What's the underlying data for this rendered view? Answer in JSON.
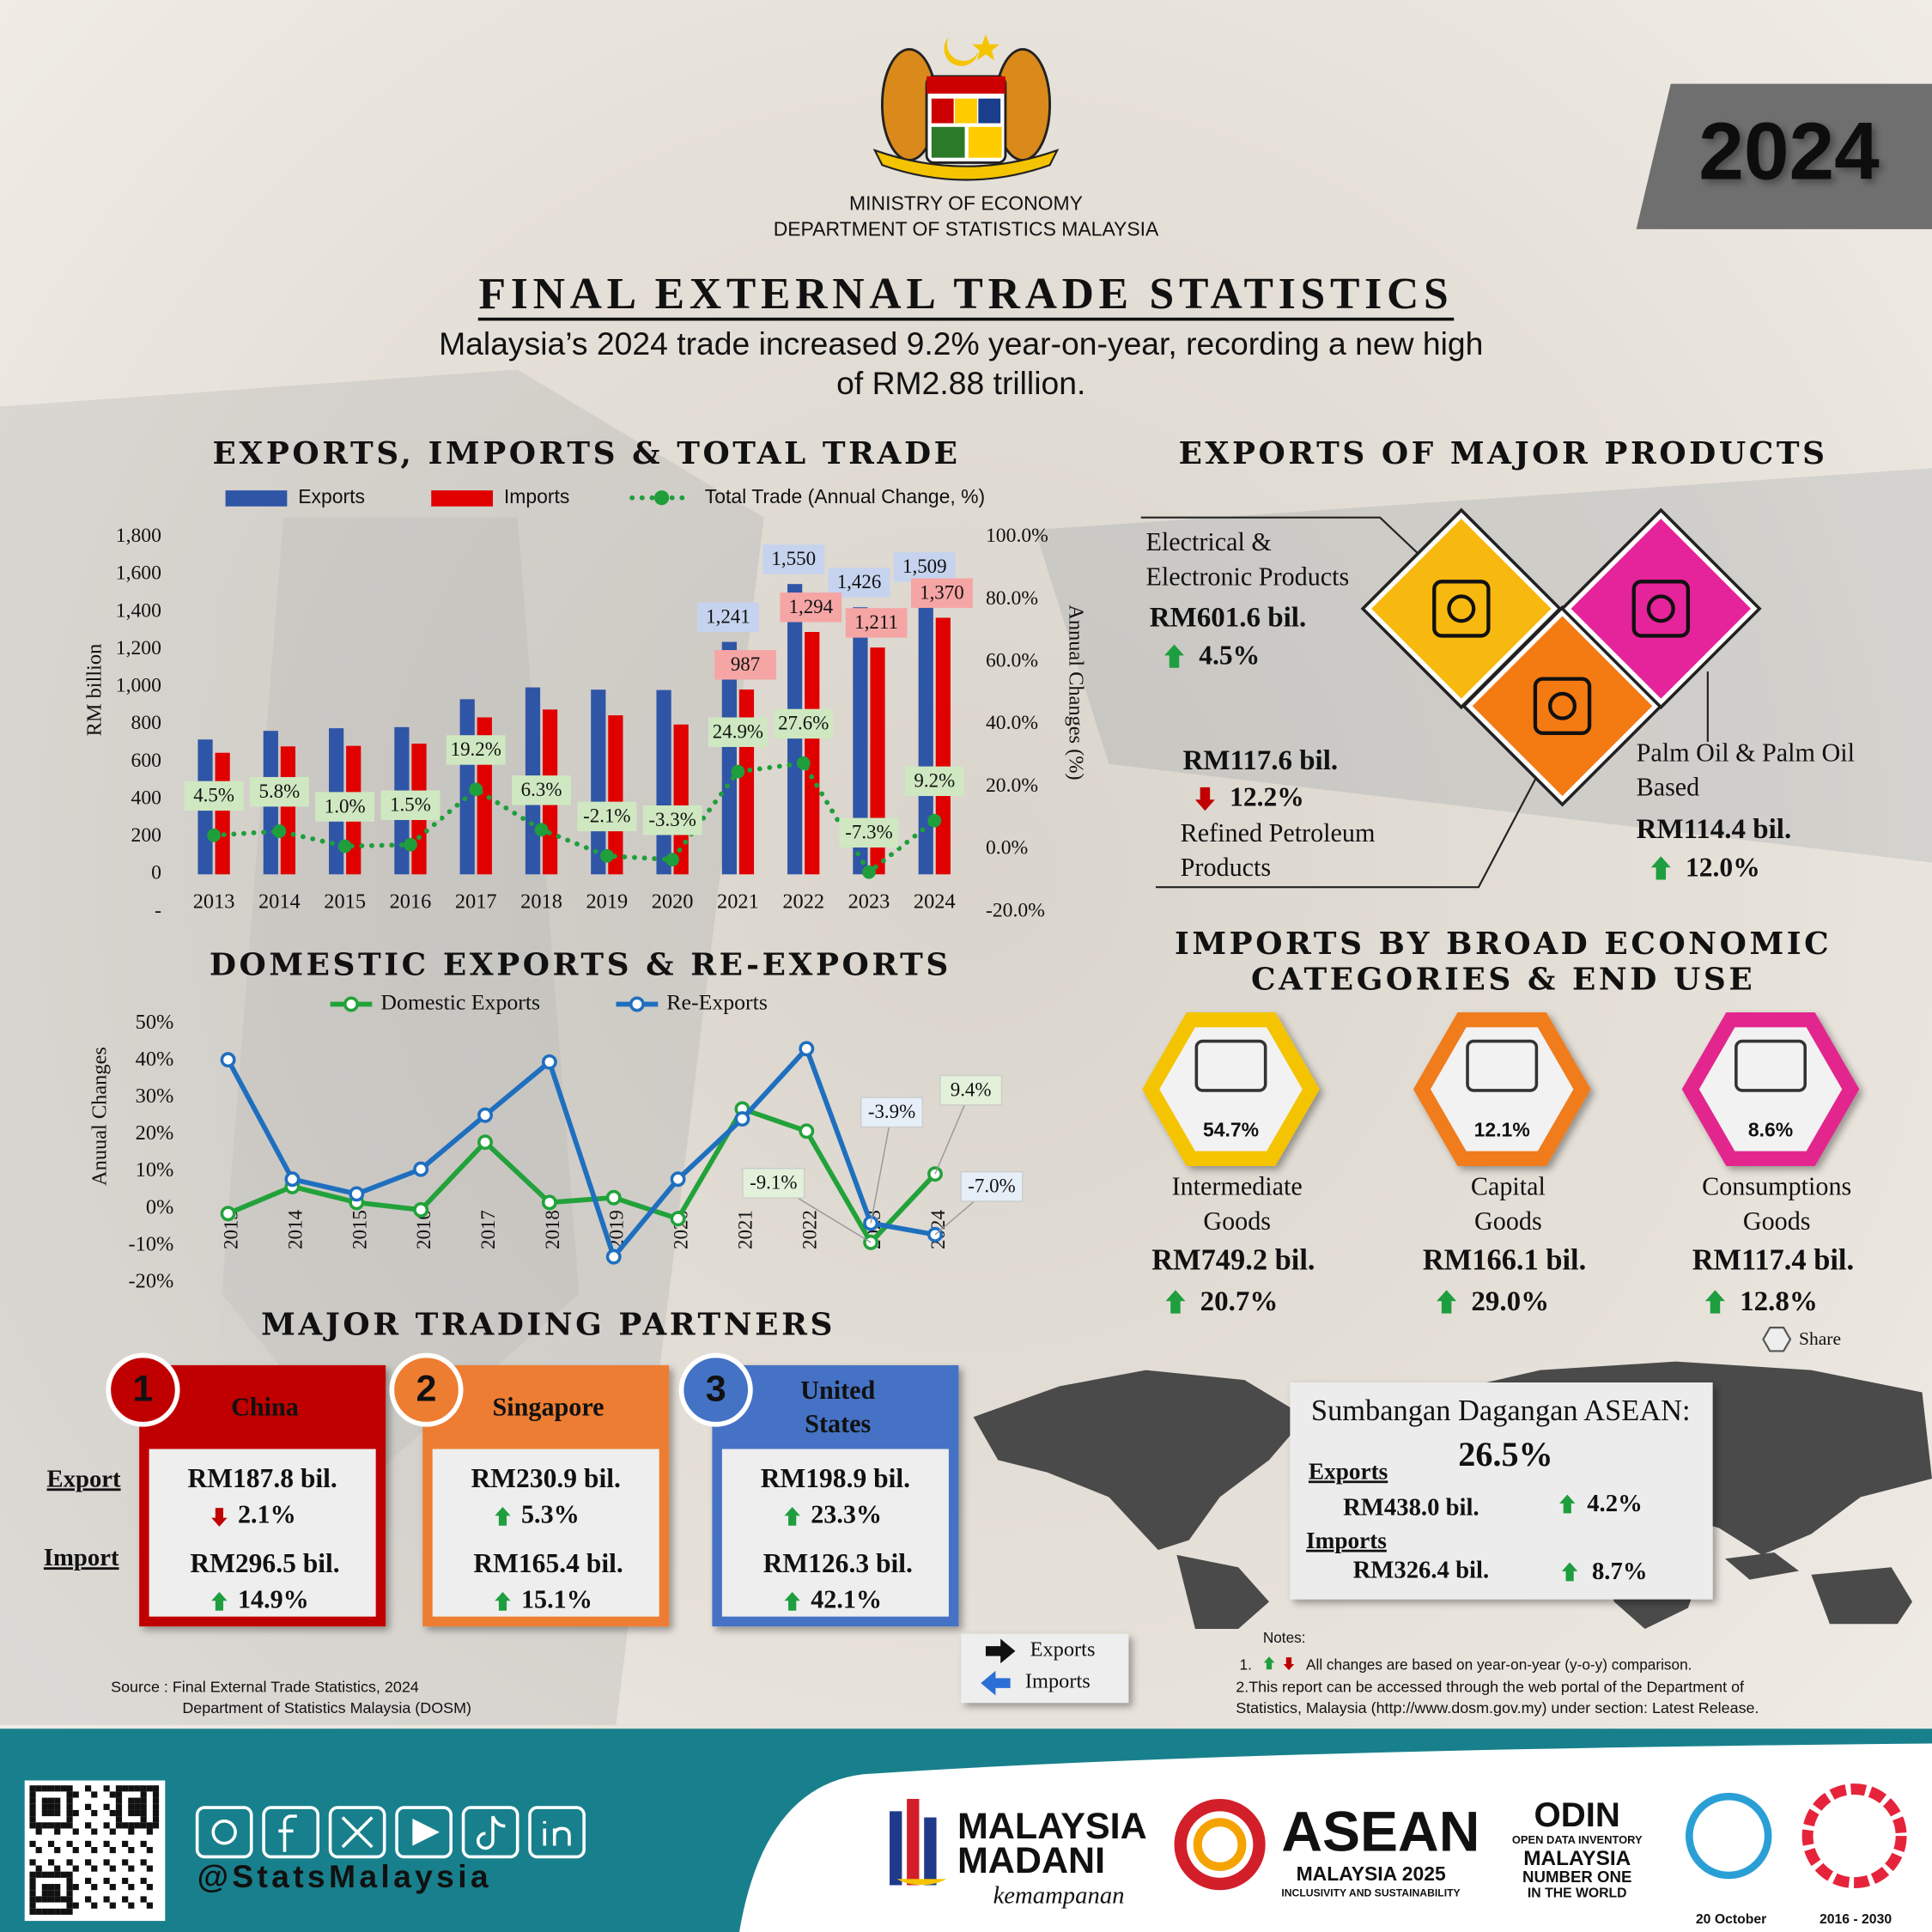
{
  "header": {
    "ministry": "MINISTRY OF ECONOMY",
    "department": "DEPARTMENT OF STATISTICS MALAYSIA",
    "year": "2024",
    "title": "FINAL EXTERNAL TRADE STATISTICS",
    "subtitle": [
      "Malaysia’s 2024 trade increased 9.2% year-on-year, recording a new high",
      "of RM2.88 trillion."
    ]
  },
  "chart_data": [
    {
      "type": "bar",
      "title": "EXPORTS, IMPORTS & TOTAL TRADE",
      "ylabel": "RM billion",
      "y2label": "Annual Changes (%)",
      "categories": [
        "2013",
        "2014",
        "2015",
        "2016",
        "2017",
        "2018",
        "2019",
        "2020",
        "2021",
        "2022",
        "2023",
        "2024"
      ],
      "series": [
        {
          "name": "Exports",
          "color": "#2f55a6",
          "values": [
            720,
            766,
            780,
            786,
            935,
            998,
            986,
            984,
            1241,
            1550,
            1426,
            1509
          ],
          "value_labels": [
            null,
            null,
            null,
            null,
            null,
            null,
            null,
            null,
            "1,241",
            "1,550",
            "1,426",
            "1,509"
          ]
        },
        {
          "name": "Imports",
          "color": "#e00000",
          "values": [
            649,
            683,
            686,
            698,
            838,
            880,
            849,
            800,
            987,
            1294,
            1211,
            1370
          ],
          "value_labels": [
            null,
            null,
            null,
            null,
            null,
            null,
            null,
            null,
            "987",
            "1,294",
            "1,211",
            "1,370"
          ]
        },
        {
          "name": "Total Trade (Annual Change, %)",
          "color": "#1f9e3c",
          "type": "line",
          "axis": "y2",
          "values": [
            4.5,
            5.8,
            1.0,
            1.5,
            19.2,
            6.3,
            -2.1,
            -3.3,
            24.9,
            27.6,
            -7.3,
            9.2
          ],
          "value_labels": [
            "4.5%",
            "5.8%",
            "1.0%",
            "1.5%",
            "19.2%",
            "6.3%",
            "-2.1%",
            "-3.3%",
            "24.9%",
            "27.6%",
            "-7.3%",
            "9.2%"
          ]
        }
      ],
      "ylim": [
        -200,
        1800
      ],
      "yticks": [
        {
          "value": -200,
          "label": "-"
        },
        0,
        200,
        400,
        600,
        800,
        {
          "value": 1000,
          "label": "1,000"
        },
        {
          "value": 1200,
          "label": "1,200"
        },
        {
          "value": 1400,
          "label": "1,400"
        },
        {
          "value": 1600,
          "label": "1,600"
        },
        {
          "value": 1800,
          "label": "1,800"
        }
      ],
      "y2lim": [
        -20,
        100
      ],
      "y2ticks": [
        {
          "value": -20,
          "label": "-20.0%"
        },
        {
          "value": 0,
          "label": "0.0%"
        },
        {
          "value": 20,
          "label": "20.0%"
        },
        {
          "value": 40,
          "label": "40.0%"
        },
        {
          "value": 60,
          "label": "60.0%"
        },
        {
          "value": 80,
          "label": "80.0%"
        },
        {
          "value": 100,
          "label": "100.0%"
        }
      ],
      "grid": false
    },
    {
      "type": "line",
      "title": "DOMESTIC EXPORTS & RE-EXPORTS",
      "ylabel": "Anuual Changes",
      "categories": [
        "2013",
        "2014",
        "2015",
        "2016",
        "2017",
        "2018",
        "2019",
        "2020",
        "2021",
        "2022",
        "2023",
        "2024"
      ],
      "series": [
        {
          "name": "Domestic Exports",
          "color": "#22a23a",
          "values": [
            -1.3,
            6.0,
            1.7,
            -0.3,
            18.0,
            1.7,
            3.0,
            -2.7,
            27.0,
            21.0,
            -9.1,
            9.4
          ],
          "value_labels": [
            null,
            null,
            null,
            null,
            null,
            null,
            null,
            null,
            null,
            null,
            "-9.1%",
            "9.4%"
          ]
        },
        {
          "name": "Re-Exports",
          "color": "#1f6fbf",
          "values": [
            40.3,
            8.0,
            4.0,
            10.7,
            25.3,
            39.7,
            -13.0,
            8.0,
            24.3,
            43.3,
            -3.9,
            -7.0
          ],
          "value_labels": [
            null,
            null,
            null,
            null,
            null,
            null,
            null,
            null,
            null,
            null,
            "-3.9%",
            "-7.0%"
          ]
        }
      ],
      "ylim": [
        -20,
        50
      ],
      "yticks": [
        {
          "value": -20,
          "label": "-20%"
        },
        {
          "value": -10,
          "label": "-10%"
        },
        {
          "value": 0,
          "label": "0%"
        },
        {
          "value": 10,
          "label": "10%"
        },
        {
          "value": 20,
          "label": "20%"
        },
        {
          "value": 30,
          "label": "30%"
        },
        {
          "value": 40,
          "label": "40%"
        },
        {
          "value": 50,
          "label": "50%"
        }
      ],
      "grid": false
    }
  ],
  "products": {
    "title": "EXPORTS OF MAJOR PRODUCTS",
    "items": [
      {
        "name": [
          "Electrical &",
          "Electronic Products"
        ],
        "value": "RM601.6 bil.",
        "change": "4.5%",
        "direction": "up",
        "color": "#f7b90f"
      },
      {
        "name": [
          "Refined Petroleum",
          "Products"
        ],
        "value": "RM117.6 bil.",
        "change": "12.2%",
        "direction": "down",
        "color": "#f47a12"
      },
      {
        "name": [
          "Palm Oil & Palm Oil",
          "Based"
        ],
        "value": "RM114.4 bil.",
        "change": "12.0%",
        "direction": "up",
        "color": "#e5239a"
      }
    ]
  },
  "imports": {
    "title": [
      "IMPORTS BY BROAD ECONOMIC",
      "CATEGORIES & END USE"
    ],
    "share_legend": "Share",
    "items": [
      {
        "share": "54.7%",
        "name": [
          "Intermediate",
          "Goods"
        ],
        "value": "RM749.2 bil.",
        "change": "20.7%",
        "direction": "up",
        "color": "#f5c400"
      },
      {
        "share": "12.1%",
        "name": [
          "Capital",
          "Goods"
        ],
        "value": "RM166.1 bil.",
        "change": "29.0%",
        "direction": "up",
        "color": "#f07b1a"
      },
      {
        "share": "8.6%",
        "name": [
          "Consumptions",
          "Goods"
        ],
        "value": "RM117.4 bil.",
        "change": "12.8%",
        "direction": "up",
        "color": "#e3258e"
      }
    ]
  },
  "partners": {
    "title": "MAJOR TRADING PARTNERS",
    "row_labels": [
      "Export",
      "Import"
    ],
    "items": [
      {
        "rank": "1",
        "name": [
          "China"
        ],
        "color": "#c00000",
        "export": "RM187.8 bil.",
        "export_change": "2.1%",
        "export_direction": "down",
        "import": "RM296.5 bil.",
        "import_change": "14.9%",
        "import_direction": "up"
      },
      {
        "rank": "2",
        "name": [
          "Singapore"
        ],
        "color": "#ed7d31",
        "export": "RM230.9 bil.",
        "export_change": "5.3%",
        "export_direction": "up",
        "import": "RM165.4 bil.",
        "import_change": "15.1%",
        "import_direction": "up"
      },
      {
        "rank": "3",
        "name": [
          "United",
          "States"
        ],
        "color": "#4472c4",
        "export": "RM198.9 bil.",
        "export_change": "23.3%",
        "export_direction": "up",
        "import": "RM126.3 bil.",
        "import_change": "42.1%",
        "import_direction": "up"
      }
    ]
  },
  "arrows_legend": {
    "exports": "Exports",
    "imports": "Imports"
  },
  "asean": {
    "title": "Sumbangan Dagangan ASEAN:",
    "share": "26.5%",
    "exports_label": "Exports",
    "exports_value": "RM438.0 bil.",
    "exports_change": "4.2%",
    "imports_label": "Imports",
    "imports_value": "RM326.4 bil.",
    "imports_change": "8.7%"
  },
  "notes": {
    "title": "Notes:",
    "items": [
      "1.",
      "All changes are based on year-on-year (y-o-y) comparison.",
      "2.This report can be accessed through the web portal of the Department of",
      "Statistics, Malaysia (http://www.dosm.gov.my) under section: Latest Release."
    ]
  },
  "source": [
    "Source : Final External Trade Statistics, 2024",
    "Department of Statistics Malaysia (DOSM)"
  ],
  "footer": {
    "handle": "@StatsMalaysia",
    "madani": [
      "MALAYSIA",
      "MADANI",
      "kemampanan"
    ],
    "asean": [
      "ASEAN",
      "MALAYSIA 2025",
      "INCLUSIVITY AND SUSTAINABILITY"
    ],
    "odin": [
      "ODIN",
      "OPEN DATA INVENTORY",
      "MALAYSIA",
      "NUMBER ONE",
      "IN THE WORLD"
    ],
    "stats_day": "20 October",
    "sdg": "2016 - 2030"
  }
}
